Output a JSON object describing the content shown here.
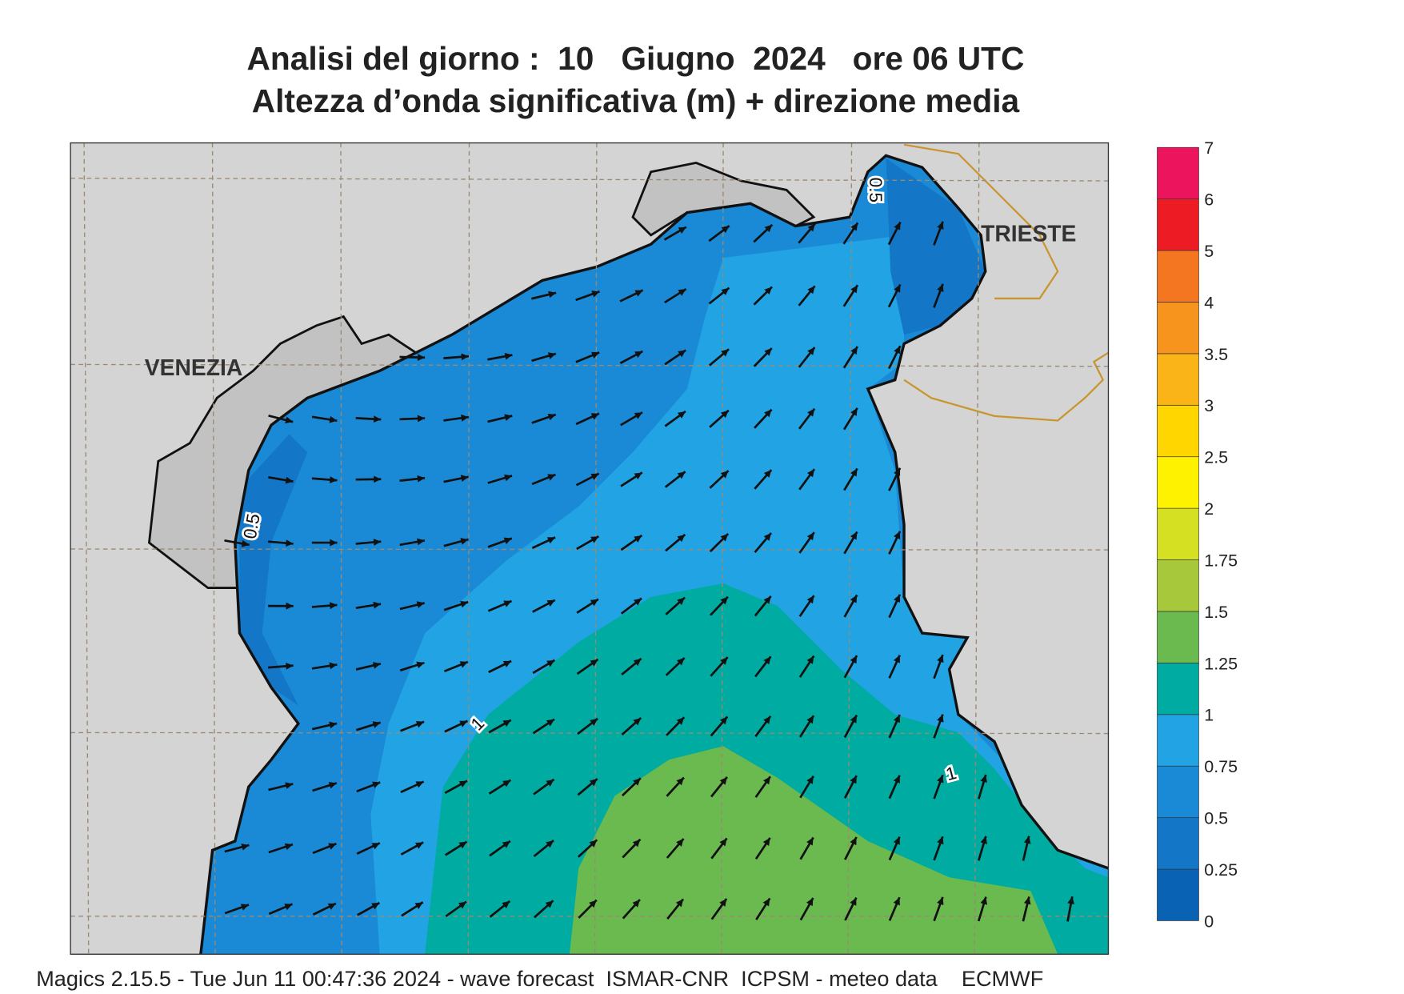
{
  "title": {
    "line1": "Analisi del giorno :  10   Giugno  2024   ore 06 UTC",
    "line2": "Altezza d’onda significativa (m) + direzione media"
  },
  "map": {
    "places": [
      "VENEZIA",
      "TRIESTE"
    ],
    "contour_labels": [
      0.5,
      1,
      1,
      0.5
    ]
  },
  "legend": {
    "levels": [
      0,
      0.25,
      0.5,
      0.75,
      1,
      1.25,
      1.5,
      1.75,
      2,
      2.5,
      3,
      3.5,
      4,
      5,
      6,
      7
    ],
    "colors": [
      "#0a62b4",
      "#1476c6",
      "#1a8ad6",
      "#22a3e3",
      "#00aba1",
      "#6aba50",
      "#a8c83b",
      "#d6e022",
      "#fff200",
      "#ffd600",
      "#fbb418",
      "#f7941d",
      "#f47621",
      "#ed1c24",
      "#ec145c"
    ]
  },
  "footer": "Magics 2.15.5 - Tue Jun 11 00:47:36 2024 - wave forecast  ISMAR-CNR  ICPSM - meteo data    ECMWF"
}
